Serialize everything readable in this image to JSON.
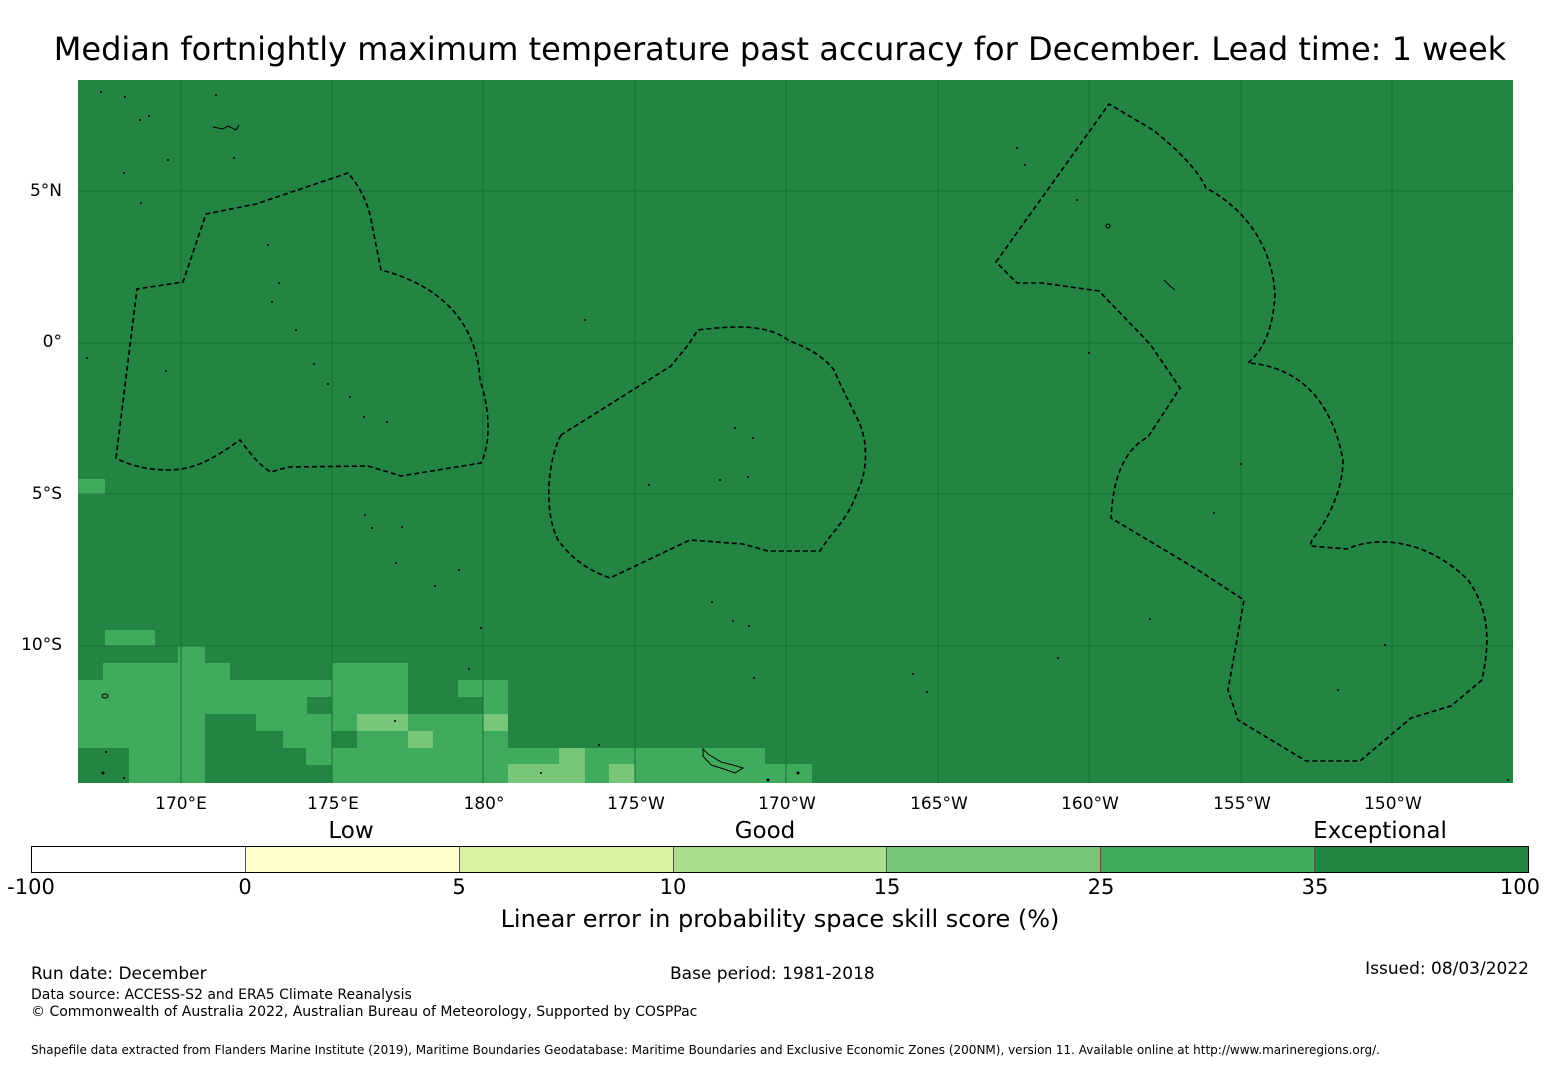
{
  "title": "Median fortnightly maximum temperature past accuracy for December. Lead time: 1 week",
  "map": {
    "background_color": "#238443",
    "latitude_labels": [
      "5°N",
      "0°",
      "5°S",
      "10°S"
    ],
    "longitude_labels": [
      "170°E",
      "175°E",
      "180°",
      "175°W",
      "170°W",
      "165°W",
      "160°W",
      "155°W",
      "150°W"
    ]
  },
  "legend": {
    "level_labels": [
      "Low",
      "Good",
      "Exceptional"
    ],
    "ticks": [
      "-100",
      "0",
      "5",
      "10",
      "15",
      "25",
      "35",
      "100"
    ],
    "colors": [
      "#ffffff",
      "#ffffcc",
      "#d9f0a3",
      "#addd8e",
      "#78c679",
      "#41ab5d",
      "#238443"
    ],
    "title": "Linear error in probability space skill score (%)"
  },
  "footer": {
    "run_date": "Run date: December",
    "base_period": "Base period: 1981-2018",
    "issued": "Issued: 08/03/2022",
    "data_source": "Data source: ACCESS-S2 and ERA5 Climate Reanalysis",
    "copyright": "© Commonwealth of Australia 2022, Australian Bureau of Meteorology, Supported by COSPPac",
    "shapefile": "Shapefile data extracted from Flanders Marine Institute (2019), Maritime Boundaries Geodatabase: Maritime Boundaries and Exclusive Economic Zones (200NM), version 11. Available online at http://www.marineregions.org/."
  }
}
